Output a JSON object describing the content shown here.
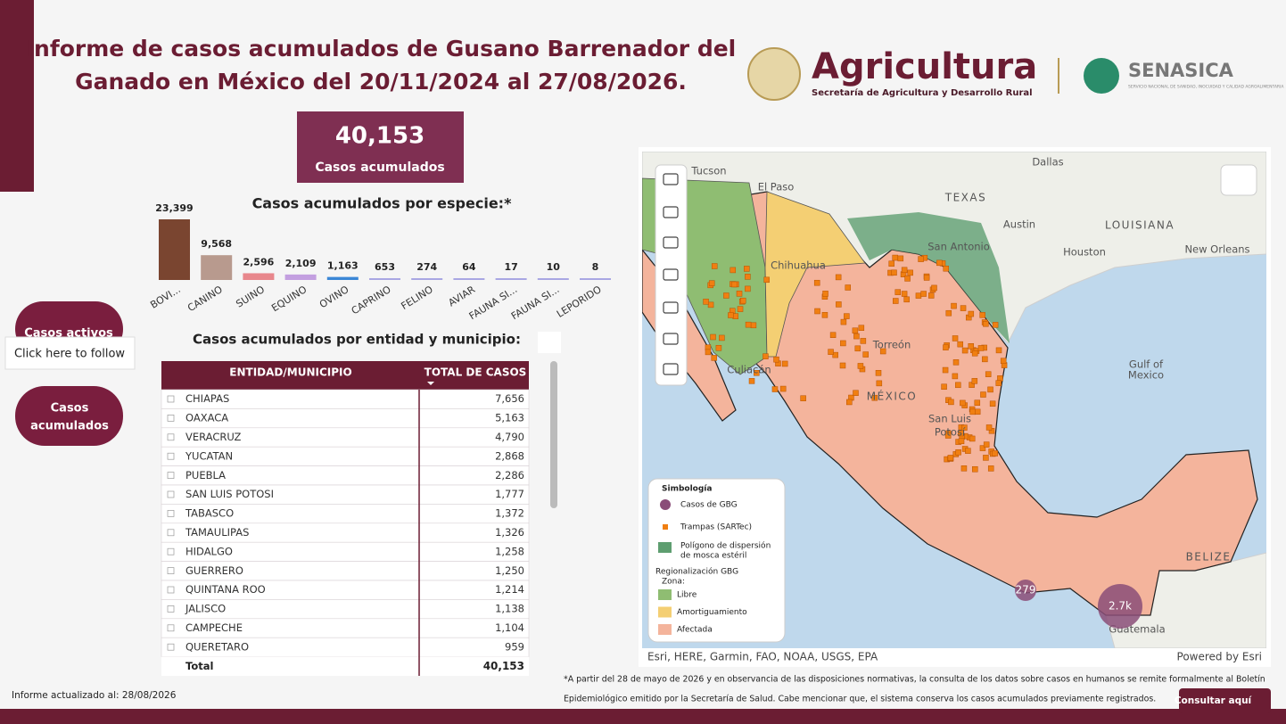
{
  "header": {
    "title_line1": "Informe de casos acumulados de Gusano Barrenador del",
    "title_line2": "Ganado en México del 20/11/2024 al 27/08/2026.",
    "logo_main": "Agricultura",
    "logo_sub": "Secretaría de Agricultura y Desarrollo Rural",
    "logo2_main": "SENASICA",
    "logo2_sub": "SERVICIO NACIONAL DE SANIDAD, INOCUIDAD Y CALIDAD AGROALIMENTARIA"
  },
  "kpi": {
    "value": "40,153",
    "label": "Casos acumulados"
  },
  "chart_data": {
    "type": "bar",
    "title": "Casos acumulados por especie:*",
    "categories": [
      "BOVI...",
      "CANINO",
      "SUINO",
      "EQUINO",
      "OVINO",
      "CAPRINO",
      "FELINO",
      "AVIAR",
      "FAUNA SI...",
      "FAUNA SI...",
      "LEPORIDO"
    ],
    "values": [
      23399,
      9568,
      2596,
      2109,
      1163,
      653,
      274,
      64,
      17,
      10,
      8
    ],
    "value_labels": [
      "23,399",
      "9,568",
      "2,596",
      "2,109",
      "1,163",
      "653",
      "274",
      "64",
      "17",
      "10",
      "8"
    ],
    "colors": [
      "#7a4530",
      "#b89a8e",
      "#e8878c",
      "#c39fe0",
      "#3b87d6",
      "#a9a7e3",
      "#a9a7e3",
      "#a9a7e3",
      "#a9a7e3",
      "#a9a7e3",
      "#a9a7e3"
    ]
  },
  "nav": {
    "button_active": "Casos activos",
    "tooltip": "Click here to follow",
    "button_accumulated_1": "Casos",
    "button_accumulated_2": "acumulados"
  },
  "table": {
    "title": "Casos acumulados por entidad y municipio:",
    "columns": [
      "ENTIDAD/MUNICIPIO",
      "TOTAL DE CASOS"
    ],
    "rows": [
      [
        "CHIAPAS",
        "7,656"
      ],
      [
        "OAXACA",
        "5,163"
      ],
      [
        "VERACRUZ",
        "4,790"
      ],
      [
        "YUCATAN",
        "2,868"
      ],
      [
        "PUEBLA",
        "2,286"
      ],
      [
        "SAN LUIS POTOSI",
        "1,777"
      ],
      [
        "TABASCO",
        "1,372"
      ],
      [
        "TAMAULIPAS",
        "1,326"
      ],
      [
        "HIDALGO",
        "1,258"
      ],
      [
        "GUERRERO",
        "1,250"
      ],
      [
        "QUINTANA ROO",
        "1,214"
      ],
      [
        "JALISCO",
        "1,138"
      ],
      [
        "CAMPECHE",
        "1,104"
      ],
      [
        "QUERETARO",
        "959"
      ]
    ],
    "total": [
      "Total",
      "40,153"
    ]
  },
  "map": {
    "labels": [
      "Tucson",
      "El Paso",
      "Dallas",
      "TEXAS",
      "Austin",
      "San Antonio",
      "LOUISIANA",
      "Houston",
      "New Orleans",
      "Chihuahua",
      "Culiacán",
      "Torreón",
      "MÉXICO",
      "San Luis",
      "Potosí",
      "Gulf of",
      "Mexico",
      "BELIZE",
      "Guatemala"
    ],
    "bubbles": [
      "279",
      "2.7k"
    ],
    "legend": {
      "title": "Simbología",
      "items": [
        [
          "Casos de GBG"
        ],
        [
          "Trampas (SARTec)"
        ],
        [
          "Polígono de dispersión",
          "de mosca estéril"
        ]
      ],
      "zone_title": [
        "Regionalización GBG",
        "Zona:"
      ],
      "zones": [
        "Libre",
        "Amortiguamiento",
        "Afectada"
      ]
    },
    "attribution": "Esri, HERE, Garmin, FAO, NOAA, USGS, EPA",
    "powered": "Powered by Esri"
  },
  "footer": {
    "updated": "Informe actualizado al: 28/08/2026",
    "note_line1": "*A partir del 28 de mayo de 2026 y en observancia de las disposiciones normativas, la consulta de los datos sobre casos en humanos se remite formalmente al Boletín",
    "note_line2": "Epidemiológico emitido por la Secretaría de Salud. Cabe mencionar que, el sistema conserva los casos acumulados previamente registrados.",
    "button": "Consultar aquí"
  }
}
